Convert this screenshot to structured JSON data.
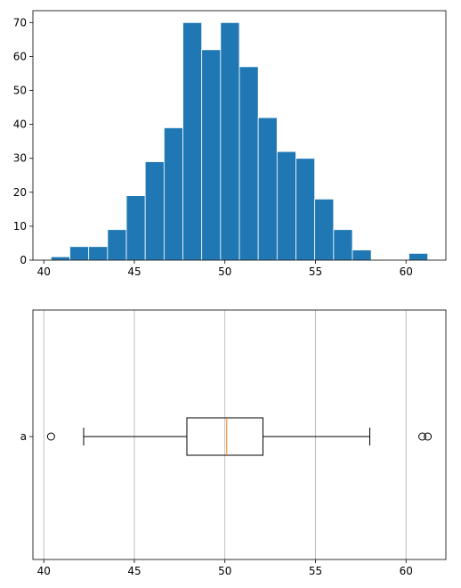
{
  "chart_data": [
    {
      "type": "histogram",
      "bin_edges": [
        40.4,
        41.44,
        42.48,
        43.52,
        44.56,
        45.6,
        46.64,
        47.68,
        48.72,
        49.76,
        50.8,
        51.84,
        52.88,
        53.92,
        54.96,
        56.0,
        57.04,
        58.08,
        59.12,
        60.16,
        61.2
      ],
      "values": [
        1,
        4,
        4,
        9,
        19,
        29,
        39,
        70,
        62,
        70,
        57,
        42,
        32,
        30,
        18,
        9,
        3,
        0,
        0,
        2
      ],
      "xlim": [
        39.4,
        62.2
      ],
      "ylim": [
        0,
        73.5
      ],
      "xticks": [
        "40",
        "45",
        "50",
        "55",
        "60"
      ],
      "xtick_values": [
        40,
        45,
        50,
        55,
        60
      ],
      "yticks": [
        "0",
        "10",
        "20",
        "30",
        "40",
        "50",
        "60",
        "70"
      ],
      "ytick_values": [
        0,
        10,
        20,
        30,
        40,
        50,
        60,
        70
      ],
      "bar_color": "#1f77b4",
      "edge_color": "#ffffff",
      "grid": false
    },
    {
      "type": "boxplot",
      "orientation": "horizontal",
      "category": "a",
      "whisker_low": 42.2,
      "q1": 47.9,
      "median": 50.1,
      "q3": 52.1,
      "whisker_high": 58.0,
      "outliers": [
        40.4,
        60.9,
        61.2
      ],
      "xlim": [
        39.4,
        62.2
      ],
      "xticks": [
        "40",
        "45",
        "50",
        "55",
        "60"
      ],
      "xtick_values": [
        40,
        45,
        50,
        55,
        60
      ],
      "median_color": "#ff7f0e",
      "grid": "vertical"
    }
  ]
}
